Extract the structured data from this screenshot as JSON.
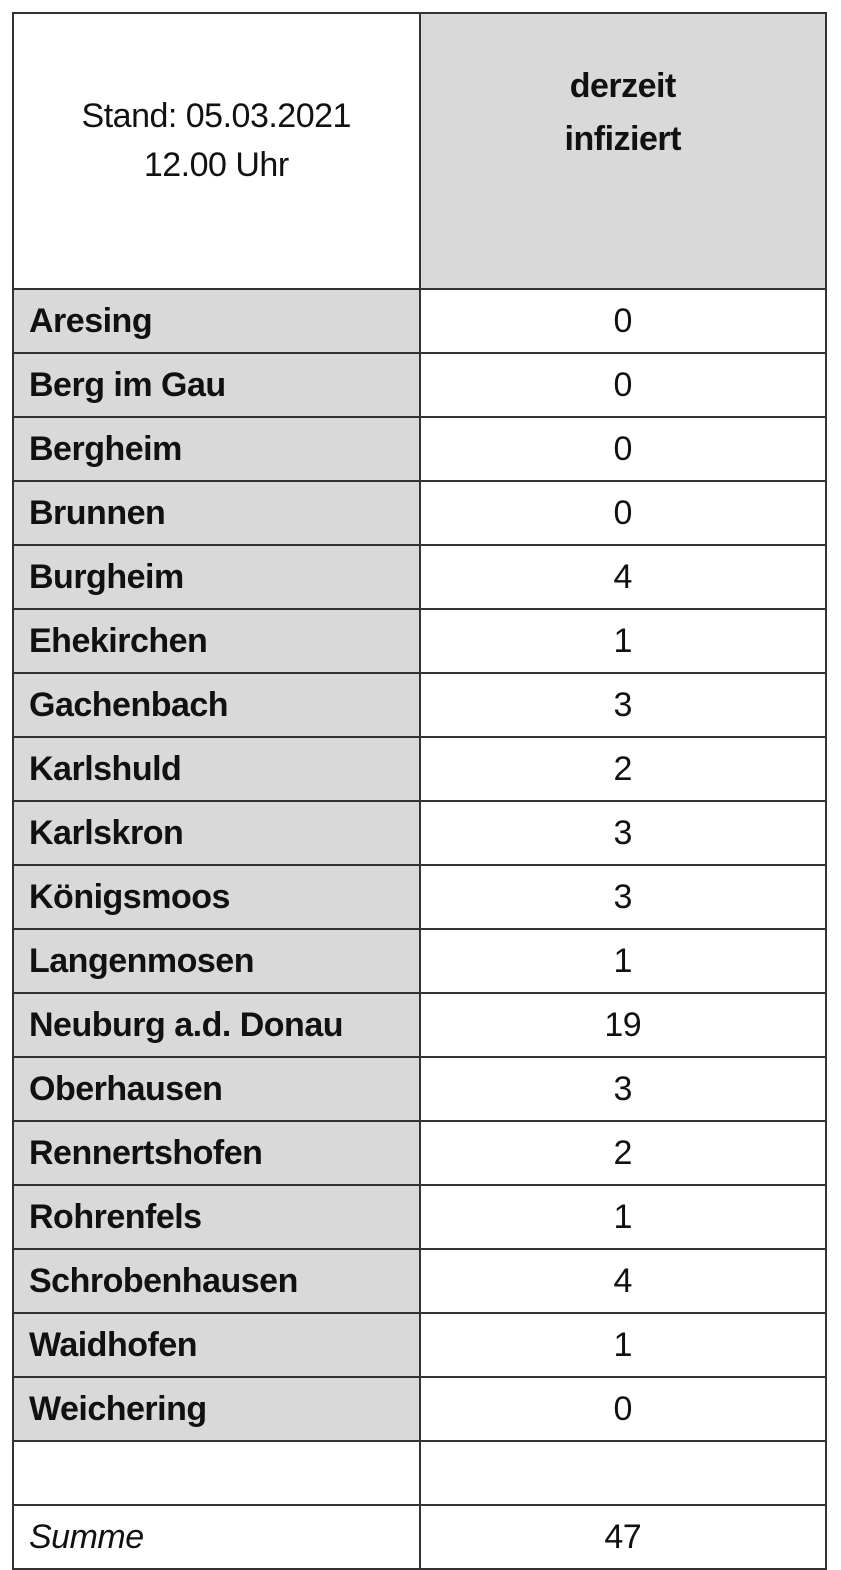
{
  "header": {
    "stand_line1": "Stand: 05.03.2021",
    "stand_line2": "12.00 Uhr",
    "column_line1": "derzeit",
    "column_line2": "infiziert"
  },
  "rows": [
    {
      "name": "Aresing",
      "value": "0"
    },
    {
      "name": "Berg im Gau",
      "value": "0"
    },
    {
      "name": "Bergheim",
      "value": "0"
    },
    {
      "name": "Brunnen",
      "value": "0"
    },
    {
      "name": "Burgheim",
      "value": "4"
    },
    {
      "name": "Ehekirchen",
      "value": "1"
    },
    {
      "name": "Gachenbach",
      "value": "3"
    },
    {
      "name": "Karlshuld",
      "value": "2"
    },
    {
      "name": "Karlskron",
      "value": "3"
    },
    {
      "name": "Königsmoos",
      "value": "3"
    },
    {
      "name": "Langenmosen",
      "value": "1"
    },
    {
      "name": "Neuburg a.d. Donau",
      "value": "19"
    },
    {
      "name": "Oberhausen",
      "value": "3"
    },
    {
      "name": "Rennertshofen",
      "value": "2"
    },
    {
      "name": "Rohrenfels",
      "value": "1"
    },
    {
      "name": "Schrobenhausen",
      "value": "4"
    },
    {
      "name": "Waidhofen",
      "value": "1"
    },
    {
      "name": "Weichering",
      "value": "0"
    }
  ],
  "total": {
    "label": "Summe",
    "value": "47"
  },
  "colors": {
    "shaded": "#d9d9d9",
    "border": "#333333"
  }
}
